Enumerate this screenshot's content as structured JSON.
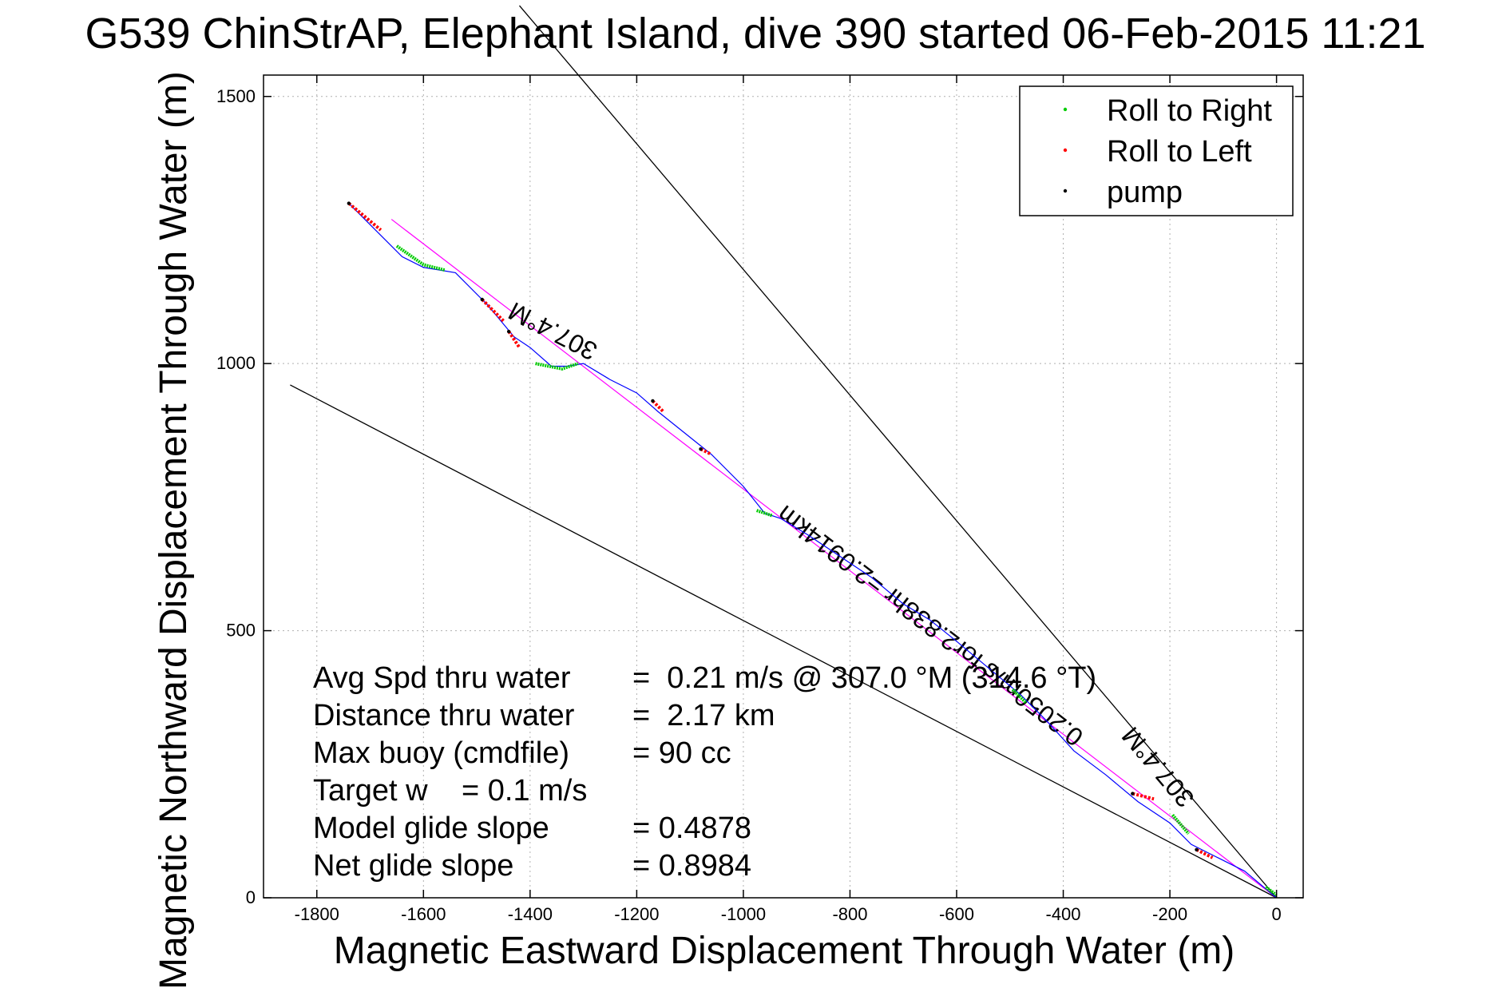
{
  "title": "G539 ChinStrAP, Elephant Island, dive 390 started 06-Feb-2015 11:21",
  "chart_data": {
    "type": "line",
    "xlabel": "Magnetic Eastward Displacement Through Water (m)",
    "ylabel": "Magnetic Northward Displacement Through Water (m)",
    "xlim": [
      -1900,
      50
    ],
    "ylim": [
      0,
      1540
    ],
    "x_ticks": [
      -1800,
      -1600,
      -1400,
      -1200,
      -1000,
      -800,
      -600,
      -400,
      -200,
      0
    ],
    "y_ticks": [
      0,
      500,
      1000,
      1500
    ],
    "grid": true,
    "legend_position": "top-right",
    "legend": [
      {
        "label": "Roll to Right",
        "color": "#00cc00"
      },
      {
        "label": "Roll to Left",
        "color": "#ff0000"
      },
      {
        "label": "pump",
        "color": "#000000"
      }
    ],
    "track": {
      "color": "#0000ff",
      "points": [
        [
          0,
          0
        ],
        [
          -30,
          25
        ],
        [
          -60,
          50
        ],
        [
          -110,
          75
        ],
        [
          -160,
          100
        ],
        [
          -200,
          140
        ],
        [
          -260,
          180
        ],
        [
          -320,
          230
        ],
        [
          -380,
          275
        ],
        [
          -430,
          330
        ],
        [
          -480,
          380
        ],
        [
          -540,
          430
        ],
        [
          -600,
          480
        ],
        [
          -650,
          520
        ],
        [
          -700,
          550
        ],
        [
          -760,
          600
        ],
        [
          -820,
          640
        ],
        [
          -880,
          680
        ],
        [
          -930,
          710
        ],
        [
          -960,
          720
        ],
        [
          -1000,
          770
        ],
        [
          -1060,
          830
        ],
        [
          -1110,
          870
        ],
        [
          -1160,
          910
        ],
        [
          -1200,
          945
        ],
        [
          -1250,
          970
        ],
        [
          -1300,
          1000
        ],
        [
          -1330,
          995
        ],
        [
          -1360,
          995
        ],
        [
          -1400,
          1030
        ],
        [
          -1430,
          1050
        ],
        [
          -1480,
          1110
        ],
        [
          -1540,
          1170
        ],
        [
          -1600,
          1180
        ],
        [
          -1640,
          1200
        ],
        [
          -1680,
          1240
        ],
        [
          -1740,
          1300
        ]
      ]
    },
    "roll_right_segments": [
      [
        [
          -1650,
          1220
        ],
        [
          -1600,
          1185
        ],
        [
          -1560,
          1175
        ]
      ],
      [
        [
          -1390,
          1000
        ],
        [
          -1340,
          990
        ],
        [
          -1310,
          1000
        ]
      ],
      [
        [
          -975,
          725
        ],
        [
          -945,
          715
        ]
      ],
      [
        [
          -495,
          390
        ],
        [
          -470,
          365
        ]
      ],
      [
        [
          -195,
          155
        ],
        [
          -165,
          120
        ]
      ],
      [
        [
          -20,
          20
        ],
        [
          0,
          5
        ]
      ]
    ],
    "roll_left_segments": [
      [
        [
          -1740,
          1300
        ],
        [
          -1680,
          1250
        ]
      ],
      [
        [
          -1490,
          1120
        ],
        [
          -1450,
          1080
        ]
      ],
      [
        [
          -1440,
          1060
        ],
        [
          -1420,
          1030
        ]
      ],
      [
        [
          -1170,
          930
        ],
        [
          -1150,
          910
        ]
      ],
      [
        [
          -1080,
          840
        ],
        [
          -1060,
          830
        ]
      ],
      [
        [
          -270,
          195
        ],
        [
          -230,
          185
        ]
      ],
      [
        [
          -150,
          90
        ],
        [
          -120,
          75
        ]
      ]
    ],
    "reference_lines": [
      {
        "type": "heading",
        "heading_deg": 307.4,
        "label": "307.4°M",
        "from": [
          0,
          0
        ],
        "to": [
          -1420,
          1670
        ],
        "color": "#000000"
      },
      {
        "type": "heading",
        "heading_deg": 307.4,
        "label": "307.4°M",
        "from": [
          0,
          0
        ],
        "to": [
          -1850,
          960
        ],
        "color": "#000000"
      },
      {
        "type": "net",
        "label": "0.2050m/s for2.838hr =2.0914km",
        "from": [
          0,
          0
        ],
        "to": [
          -1660,
          1270
        ],
        "color": "#ff00ff"
      }
    ]
  },
  "stats": [
    {
      "label": "Avg Spd thru water",
      "value": "=  0.21 m/s @ 307.0 °M (314.6 °T)"
    },
    {
      "label": "Distance thru water",
      "value": "=  2.17 km"
    },
    {
      "label": "Max buoy (cmdfile)",
      "value": "= 90 cc"
    },
    {
      "label": "Target w",
      "value": "= 0.1 m/s"
    },
    {
      "label": "Model glide slope",
      "value": "= 0.4878"
    },
    {
      "label": "Net glide slope",
      "value": "= 0.8984"
    }
  ]
}
